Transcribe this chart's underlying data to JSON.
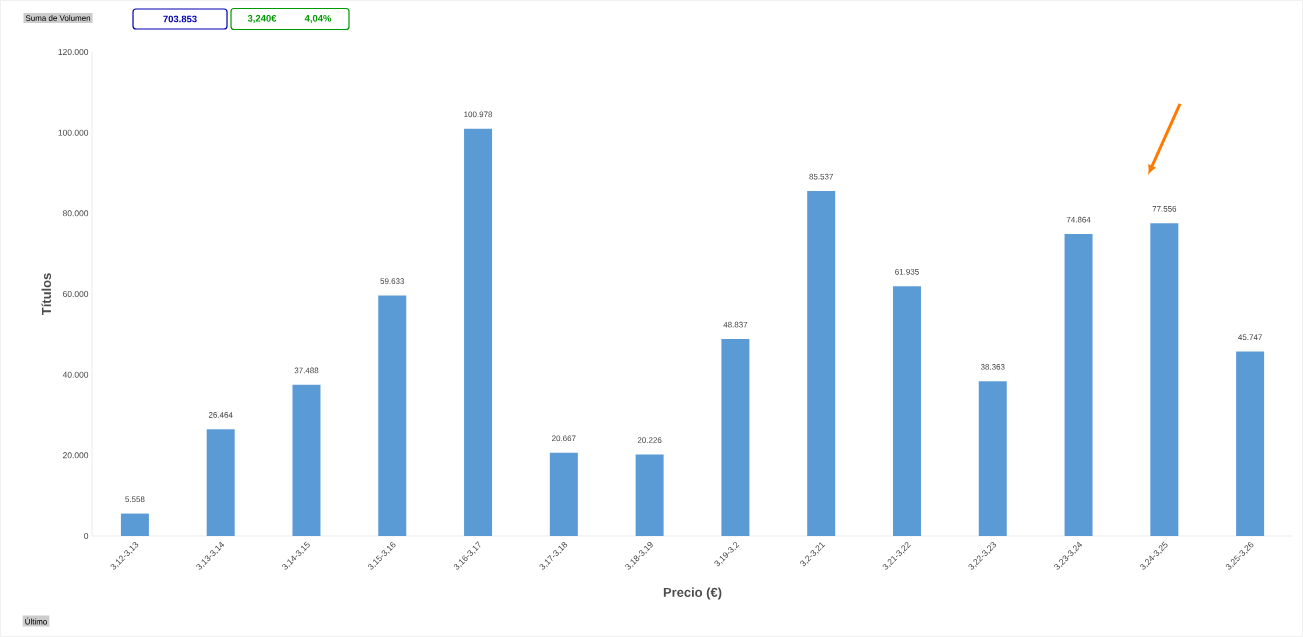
{
  "chart_data": {
    "type": "bar",
    "xlabel": "Precio (€)",
    "ylabel": "Títulos",
    "categories": [
      "3,12-3,13",
      "3,13-3,14",
      "3,14-3,15",
      "3,15-3,16",
      "3,16-3,17",
      "3,17-3,18",
      "3,18-3,19",
      "3,19-3,2",
      "3,2-3,21",
      "3,21-3,22",
      "3,22-3,23",
      "3,23-3,24",
      "3,24-3,25",
      "3,25-3,26"
    ],
    "values": [
      5558,
      26464,
      37488,
      59633,
      100978,
      20667,
      20226,
      48837,
      85537,
      61935,
      38363,
      74864,
      77556,
      45747
    ],
    "value_labels": [
      "5.558",
      "26.464",
      "37.488",
      "59.633",
      "100.978",
      "20.667",
      "20.226",
      "48.837",
      "85.537",
      "61.935",
      "38.363",
      "74.864",
      "77.556",
      "45.747"
    ],
    "color": "#5b9bd5",
    "ylim": [
      0,
      120000
    ],
    "yticks": [
      {
        "value": 0,
        "label": "0"
      },
      {
        "value": 20000,
        "label": "20.000"
      },
      {
        "value": 40000,
        "label": "40.000"
      },
      {
        "value": 60000,
        "label": "60.000"
      },
      {
        "value": 80000,
        "label": "80.000"
      },
      {
        "value": 100000,
        "label": "100.000"
      },
      {
        "value": 120000,
        "label": "120.000"
      }
    ],
    "annotations": [
      "Suma de Volumen",
      "703.853",
      "3,240€",
      "4,04%",
      "Último"
    ]
  }
}
